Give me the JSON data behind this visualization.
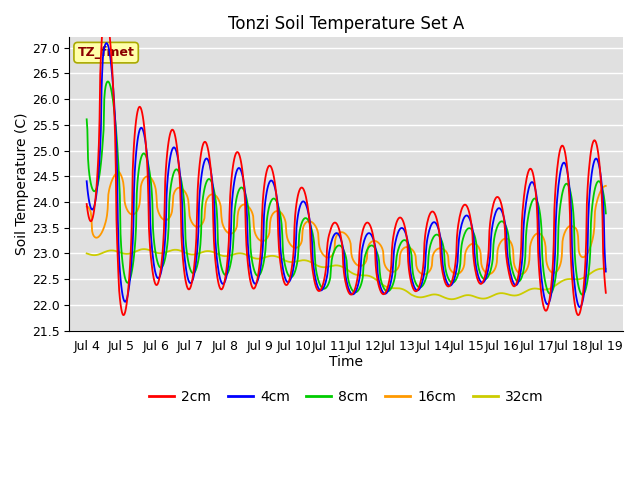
{
  "title": "Tonzi Soil Temperature Set A",
  "xlabel": "Time",
  "ylabel": "Soil Temperature (C)",
  "annotation": "TZ_fmet",
  "ylim": [
    21.5,
    27.2
  ],
  "yticks": [
    21.5,
    22.0,
    22.5,
    23.0,
    23.5,
    24.0,
    24.5,
    25.0,
    25.5,
    26.0,
    26.5,
    27.0
  ],
  "xtick_labels": [
    "Jul 4",
    "Jul 5",
    "Jul 6",
    "Jul 7",
    "Jul 8",
    "Jul 9",
    "Jul 10",
    "Jul 11",
    "Jul 12",
    "Jul 13",
    "Jul 14",
    "Jul 15",
    "Jul 16",
    "Jul 17",
    "Jul 18",
    "Jul 19"
  ],
  "n_days": 16,
  "colors": {
    "2cm": "#ff0000",
    "4cm": "#0000ff",
    "8cm": "#00cc00",
    "16cm": "#ff9900",
    "32cm": "#cccc00"
  },
  "bg_color": "#e0e0e0",
  "grid_color": "#ffffff",
  "title_fontsize": 12,
  "axis_label_fontsize": 10,
  "tick_fontsize": 9,
  "legend_fontsize": 10,
  "linewidth": 1.3
}
